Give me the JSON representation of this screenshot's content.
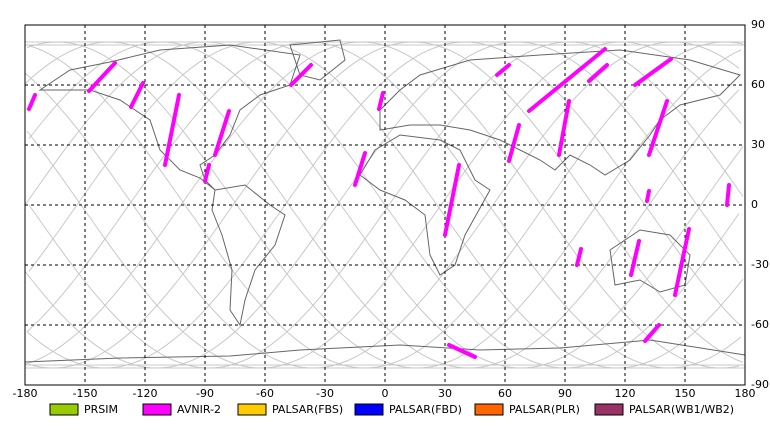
{
  "chart_data": {
    "type": "map",
    "xlim": [
      -180,
      180
    ],
    "ylim": [
      -90,
      90
    ],
    "xticks": [
      -180,
      -150,
      -120,
      -90,
      -60,
      -30,
      0,
      30,
      60,
      90,
      120,
      150,
      180
    ],
    "yticks": [
      -90,
      -60,
      -30,
      0,
      30,
      60,
      90
    ],
    "grid": true,
    "series": [
      {
        "name": "PRSIM",
        "color": "#99cc00"
      },
      {
        "name": "AVNIR-2",
        "color": "#ff00ff",
        "segments": [
          {
            "x": [
              -148,
              -135
            ],
            "y": [
              57,
              71
            ]
          },
          {
            "x": [
              -175,
              -178
            ],
            "y": [
              55,
              48
            ]
          },
          {
            "x": [
              -121,
              -127
            ],
            "y": [
              61,
              49
            ]
          },
          {
            "x": [
              -103,
              -110
            ],
            "y": [
              55,
              20
            ]
          },
          {
            "x": [
              -78,
              -85
            ],
            "y": [
              47,
              25
            ]
          },
          {
            "x": [
              -88,
              -90
            ],
            "y": [
              20,
              12
            ]
          },
          {
            "x": [
              -37,
              -47
            ],
            "y": [
              70,
              60
            ]
          },
          {
            "x": [
              -1,
              -3
            ],
            "y": [
              56,
              48
            ]
          },
          {
            "x": [
              -10,
              -15
            ],
            "y": [
              26,
              10
            ]
          },
          {
            "x": [
              37,
              30
            ],
            "y": [
              20,
              -15
            ]
          },
          {
            "x": [
              67,
              62
            ],
            "y": [
              40,
              22
            ]
          },
          {
            "x": [
              62,
              56
            ],
            "y": [
              70,
              65
            ]
          },
          {
            "x": [
              110,
              72
            ],
            "y": [
              78,
              47
            ]
          },
          {
            "x": [
              111,
              102
            ],
            "y": [
              70,
              62
            ]
          },
          {
            "x": [
              92,
              87
            ],
            "y": [
              52,
              25
            ]
          },
          {
            "x": [
              143,
              125
            ],
            "y": [
              73,
              60
            ]
          },
          {
            "x": [
              141,
              132
            ],
            "y": [
              52,
              25
            ]
          },
          {
            "x": [
              152,
              145
            ],
            "y": [
              -12,
              -45
            ]
          },
          {
            "x": [
              137,
              130
            ],
            "y": [
              -60,
              -68
            ]
          },
          {
            "x": [
              32,
              45
            ],
            "y": [
              -70,
              -76
            ]
          },
          {
            "x": [
              172,
              171
            ],
            "y": [
              10,
              0
            ]
          },
          {
            "x": [
              98,
              96
            ],
            "y": [
              -22,
              -30
            ]
          },
          {
            "x": [
              127,
              123
            ],
            "y": [
              -18,
              -35
            ]
          },
          {
            "x": [
              132,
              131
            ],
            "y": [
              7,
              2
            ]
          }
        ]
      },
      {
        "name": "PALSAR(FBS)",
        "color": "#ffcc00"
      },
      {
        "name": "PALSAR(FBD)",
        "color": "#0000ff"
      },
      {
        "name": "PALSAR(PLR)",
        "color": "#ff6600"
      },
      {
        "name": "PALSAR(WB1/WB2)",
        "color": "#993366"
      }
    ]
  }
}
